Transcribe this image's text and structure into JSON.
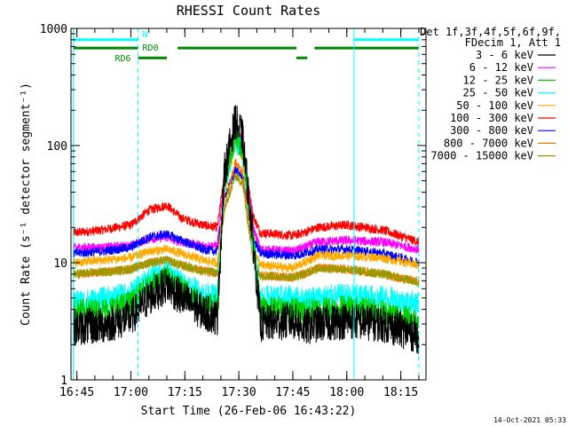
{
  "chart_data": {
    "type": "line",
    "title": "RHESSI Count Rates",
    "xlabel": "Start Time (26-Feb-06 16:43:22)",
    "ylabel": "Count Rate (s⁻¹ detector segment⁻¹)",
    "y_scale": "log",
    "ylim": [
      1,
      1000
    ],
    "y_ticks": [
      "1",
      "10",
      "100",
      "1000"
    ],
    "xlim": [
      "16:43:22",
      "18:22:00"
    ],
    "x_ticks": [
      "16:45",
      "17:00",
      "17:15",
      "17:30",
      "17:45",
      "18:00",
      "18:15"
    ],
    "grid": false,
    "legend": {
      "placement": "right",
      "header": [
        "Det 1f,3f,4f,5f,6f,9f,",
        "FDecim 1, Att 1"
      ]
    },
    "series": [
      {
        "name": "3 - 6 keV",
        "color": "#000000",
        "points": [
          [
            "16:44",
            2.8
          ],
          [
            "16:52",
            2.9
          ],
          [
            "17:00",
            3.4
          ],
          [
            "17:05",
            5.0
          ],
          [
            "17:10",
            6.5
          ],
          [
            "17:14",
            5.0
          ],
          [
            "17:20",
            3.8
          ],
          [
            "17:24",
            3.4
          ],
          [
            "17:26",
            60
          ],
          [
            "17:29",
            165
          ],
          [
            "17:31",
            120
          ],
          [
            "17:34",
            15
          ],
          [
            "17:36",
            3.0
          ],
          [
            "17:45",
            3.2
          ],
          [
            "17:48",
            2.8
          ],
          [
            "17:52",
            3.0
          ],
          [
            "18:00",
            3.2
          ],
          [
            "18:10",
            3.0
          ],
          [
            "18:20",
            2.4
          ]
        ]
      },
      {
        "name": "6 - 12 keV",
        "color": "#ff00ff",
        "points": [
          [
            "16:44",
            13.5
          ],
          [
            "16:52",
            13.5
          ],
          [
            "17:00",
            14
          ],
          [
            "17:05",
            16
          ],
          [
            "17:10",
            16.5
          ],
          [
            "17:14",
            15
          ],
          [
            "17:20",
            14
          ],
          [
            "17:24",
            14
          ],
          [
            "17:26",
            50
          ],
          [
            "17:29",
            140
          ],
          [
            "17:31",
            110
          ],
          [
            "17:34",
            20
          ],
          [
            "17:36",
            13
          ],
          [
            "17:45",
            12.5
          ],
          [
            "17:48",
            13.5
          ],
          [
            "17:52",
            15
          ],
          [
            "18:00",
            15.5
          ],
          [
            "18:10",
            15
          ],
          [
            "18:20",
            13
          ]
        ]
      },
      {
        "name": "12 - 25 keV",
        "color": "#00cc00",
        "points": [
          [
            "16:44",
            3.8
          ],
          [
            "16:52",
            3.9
          ],
          [
            "17:00",
            4.5
          ],
          [
            "17:05",
            6.2
          ],
          [
            "17:10",
            7.5
          ],
          [
            "17:14",
            6.0
          ],
          [
            "17:20",
            4.5
          ],
          [
            "17:24",
            4.2
          ],
          [
            "17:26",
            50
          ],
          [
            "17:29",
            125
          ],
          [
            "17:31",
            95
          ],
          [
            "17:34",
            15
          ],
          [
            "17:36",
            4.0
          ],
          [
            "17:45",
            4.0
          ],
          [
            "17:48",
            3.8
          ],
          [
            "17:52",
            4.0
          ],
          [
            "18:00",
            4.2
          ],
          [
            "18:10",
            3.8
          ],
          [
            "18:20",
            3.2
          ]
        ]
      },
      {
        "name": "25 - 50 keV",
        "color": "#00ffff",
        "points": [
          [
            "16:44",
            4.6
          ],
          [
            "16:52",
            4.8
          ],
          [
            "17:00",
            5.4
          ],
          [
            "17:05",
            7.2
          ],
          [
            "17:10",
            8.4
          ],
          [
            "17:14",
            6.8
          ],
          [
            "17:20",
            5.4
          ],
          [
            "17:24",
            5.0
          ],
          [
            "17:26",
            45
          ],
          [
            "17:29",
            115
          ],
          [
            "17:31",
            90
          ],
          [
            "17:34",
            14
          ],
          [
            "17:36",
            5.0
          ],
          [
            "17:45",
            5.0
          ],
          [
            "17:48",
            4.8
          ],
          [
            "17:52",
            5.0
          ],
          [
            "18:00",
            5.2
          ],
          [
            "18:10",
            5.0
          ],
          [
            "18:20",
            4.4
          ]
        ]
      },
      {
        "name": "50 - 100 keV",
        "color": "#ffaa00",
        "points": [
          [
            "16:44",
            10
          ],
          [
            "16:52",
            10.5
          ],
          [
            "17:00",
            11
          ],
          [
            "17:05",
            12.5
          ],
          [
            "17:10",
            13
          ],
          [
            "17:14",
            12
          ],
          [
            "17:20",
            10.5
          ],
          [
            "17:24",
            10
          ],
          [
            "17:26",
            40
          ],
          [
            "17:29",
            100
          ],
          [
            "17:31",
            80
          ],
          [
            "17:34",
            13
          ],
          [
            "17:36",
            9.5
          ],
          [
            "17:45",
            9.0
          ],
          [
            "17:48",
            10
          ],
          [
            "17:52",
            11.5
          ],
          [
            "18:00",
            11.5
          ],
          [
            "18:10",
            11
          ],
          [
            "18:20",
            9.5
          ]
        ]
      },
      {
        "name": "100 - 300 keV",
        "color": "#ff0000",
        "points": [
          [
            "16:44",
            18
          ],
          [
            "16:52",
            19
          ],
          [
            "17:00",
            21
          ],
          [
            "17:05",
            28
          ],
          [
            "17:10",
            31
          ],
          [
            "17:14",
            24
          ],
          [
            "17:20",
            21
          ],
          [
            "17:24",
            20
          ],
          [
            "17:26",
            55
          ],
          [
            "17:29",
            105
          ],
          [
            "17:31",
            90
          ],
          [
            "17:34",
            25
          ],
          [
            "17:36",
            18
          ],
          [
            "17:45",
            17
          ],
          [
            "17:48",
            18
          ],
          [
            "17:52",
            20
          ],
          [
            "18:00",
            21
          ],
          [
            "18:10",
            19
          ],
          [
            "18:20",
            15
          ]
        ]
      },
      {
        "name": "300 - 800 keV",
        "color": "#0000ff",
        "points": [
          [
            "16:44",
            12
          ],
          [
            "16:52",
            12.5
          ],
          [
            "17:00",
            13.5
          ],
          [
            "17:05",
            16.5
          ],
          [
            "17:10",
            17.5
          ],
          [
            "17:14",
            15.5
          ],
          [
            "17:20",
            13
          ],
          [
            "17:24",
            12.5
          ],
          [
            "17:26",
            35
          ],
          [
            "17:29",
            62
          ],
          [
            "17:31",
            55
          ],
          [
            "17:34",
            16
          ],
          [
            "17:36",
            12
          ],
          [
            "17:45",
            11.5
          ],
          [
            "17:48",
            12
          ],
          [
            "17:52",
            13
          ],
          [
            "18:00",
            13
          ],
          [
            "18:10",
            12
          ],
          [
            "18:20",
            10
          ]
        ]
      },
      {
        "name": "800 - 7000 keV",
        "color": "#ff7700",
        "points": [
          [
            "16:44",
            8.0
          ],
          [
            "16:52",
            8.3
          ],
          [
            "17:00",
            8.8
          ],
          [
            "17:05",
            10
          ],
          [
            "17:10",
            10.5
          ],
          [
            "17:14",
            9.5
          ],
          [
            "17:20",
            8.5
          ],
          [
            "17:24",
            8.2
          ],
          [
            "17:26",
            30
          ],
          [
            "17:29",
            72
          ],
          [
            "17:31",
            60
          ],
          [
            "17:34",
            11
          ],
          [
            "17:36",
            7.8
          ],
          [
            "17:45",
            7.5
          ],
          [
            "17:48",
            8.0
          ],
          [
            "17:52",
            9.0
          ],
          [
            "18:00",
            8.8
          ],
          [
            "18:10",
            8.0
          ],
          [
            "18:20",
            6.8
          ]
        ]
      },
      {
        "name": "7000 - 15000 keV",
        "color": "#999900",
        "points": [
          [
            "16:44",
            8.0
          ],
          [
            "16:52",
            8.3
          ],
          [
            "17:00",
            8.8
          ],
          [
            "17:05",
            10
          ],
          [
            "17:10",
            10.5
          ],
          [
            "17:14",
            9.5
          ],
          [
            "17:20",
            8.5
          ],
          [
            "17:24",
            8.2
          ],
          [
            "17:26",
            28
          ],
          [
            "17:29",
            55
          ],
          [
            "17:31",
            48
          ],
          [
            "17:34",
            10.5
          ],
          [
            "17:36",
            7.8
          ],
          [
            "17:45",
            7.5
          ],
          [
            "17:48",
            8.0
          ],
          [
            "17:52",
            9.0
          ],
          [
            "18:00",
            8.8
          ],
          [
            "18:10",
            8.0
          ],
          [
            "18:20",
            6.8
          ]
        ]
      }
    ],
    "vertical_markers": [
      {
        "time": "16:44",
        "color": "#00ffff",
        "style": "solid"
      },
      {
        "time": "17:02",
        "color": "#00ffff",
        "style": "dashed"
      },
      {
        "time": "18:02",
        "color": "#00ffff",
        "style": "solid"
      },
      {
        "time": "18:20",
        "color": "#00ffff",
        "style": "dashed"
      }
    ],
    "state_bars": [
      {
        "label": "N",
        "color": "#00ffff",
        "level": 800,
        "segments": [
          [
            "16:44",
            "17:02"
          ],
          [
            "18:02",
            "18:20"
          ]
        ]
      },
      {
        "label": "RD0",
        "color": "#008800",
        "level": 680,
        "segments": [
          [
            "16:44",
            "17:02"
          ],
          [
            "17:13",
            "17:46"
          ],
          [
            "17:51",
            "18:20"
          ]
        ]
      },
      {
        "label": "RD6",
        "color": "#008800",
        "level": 560,
        "segments": [
          [
            "17:02",
            "17:10"
          ],
          [
            "17:46",
            "17:49"
          ]
        ]
      }
    ]
  },
  "footer_timestamp": "14-Oct-2021 05:33"
}
